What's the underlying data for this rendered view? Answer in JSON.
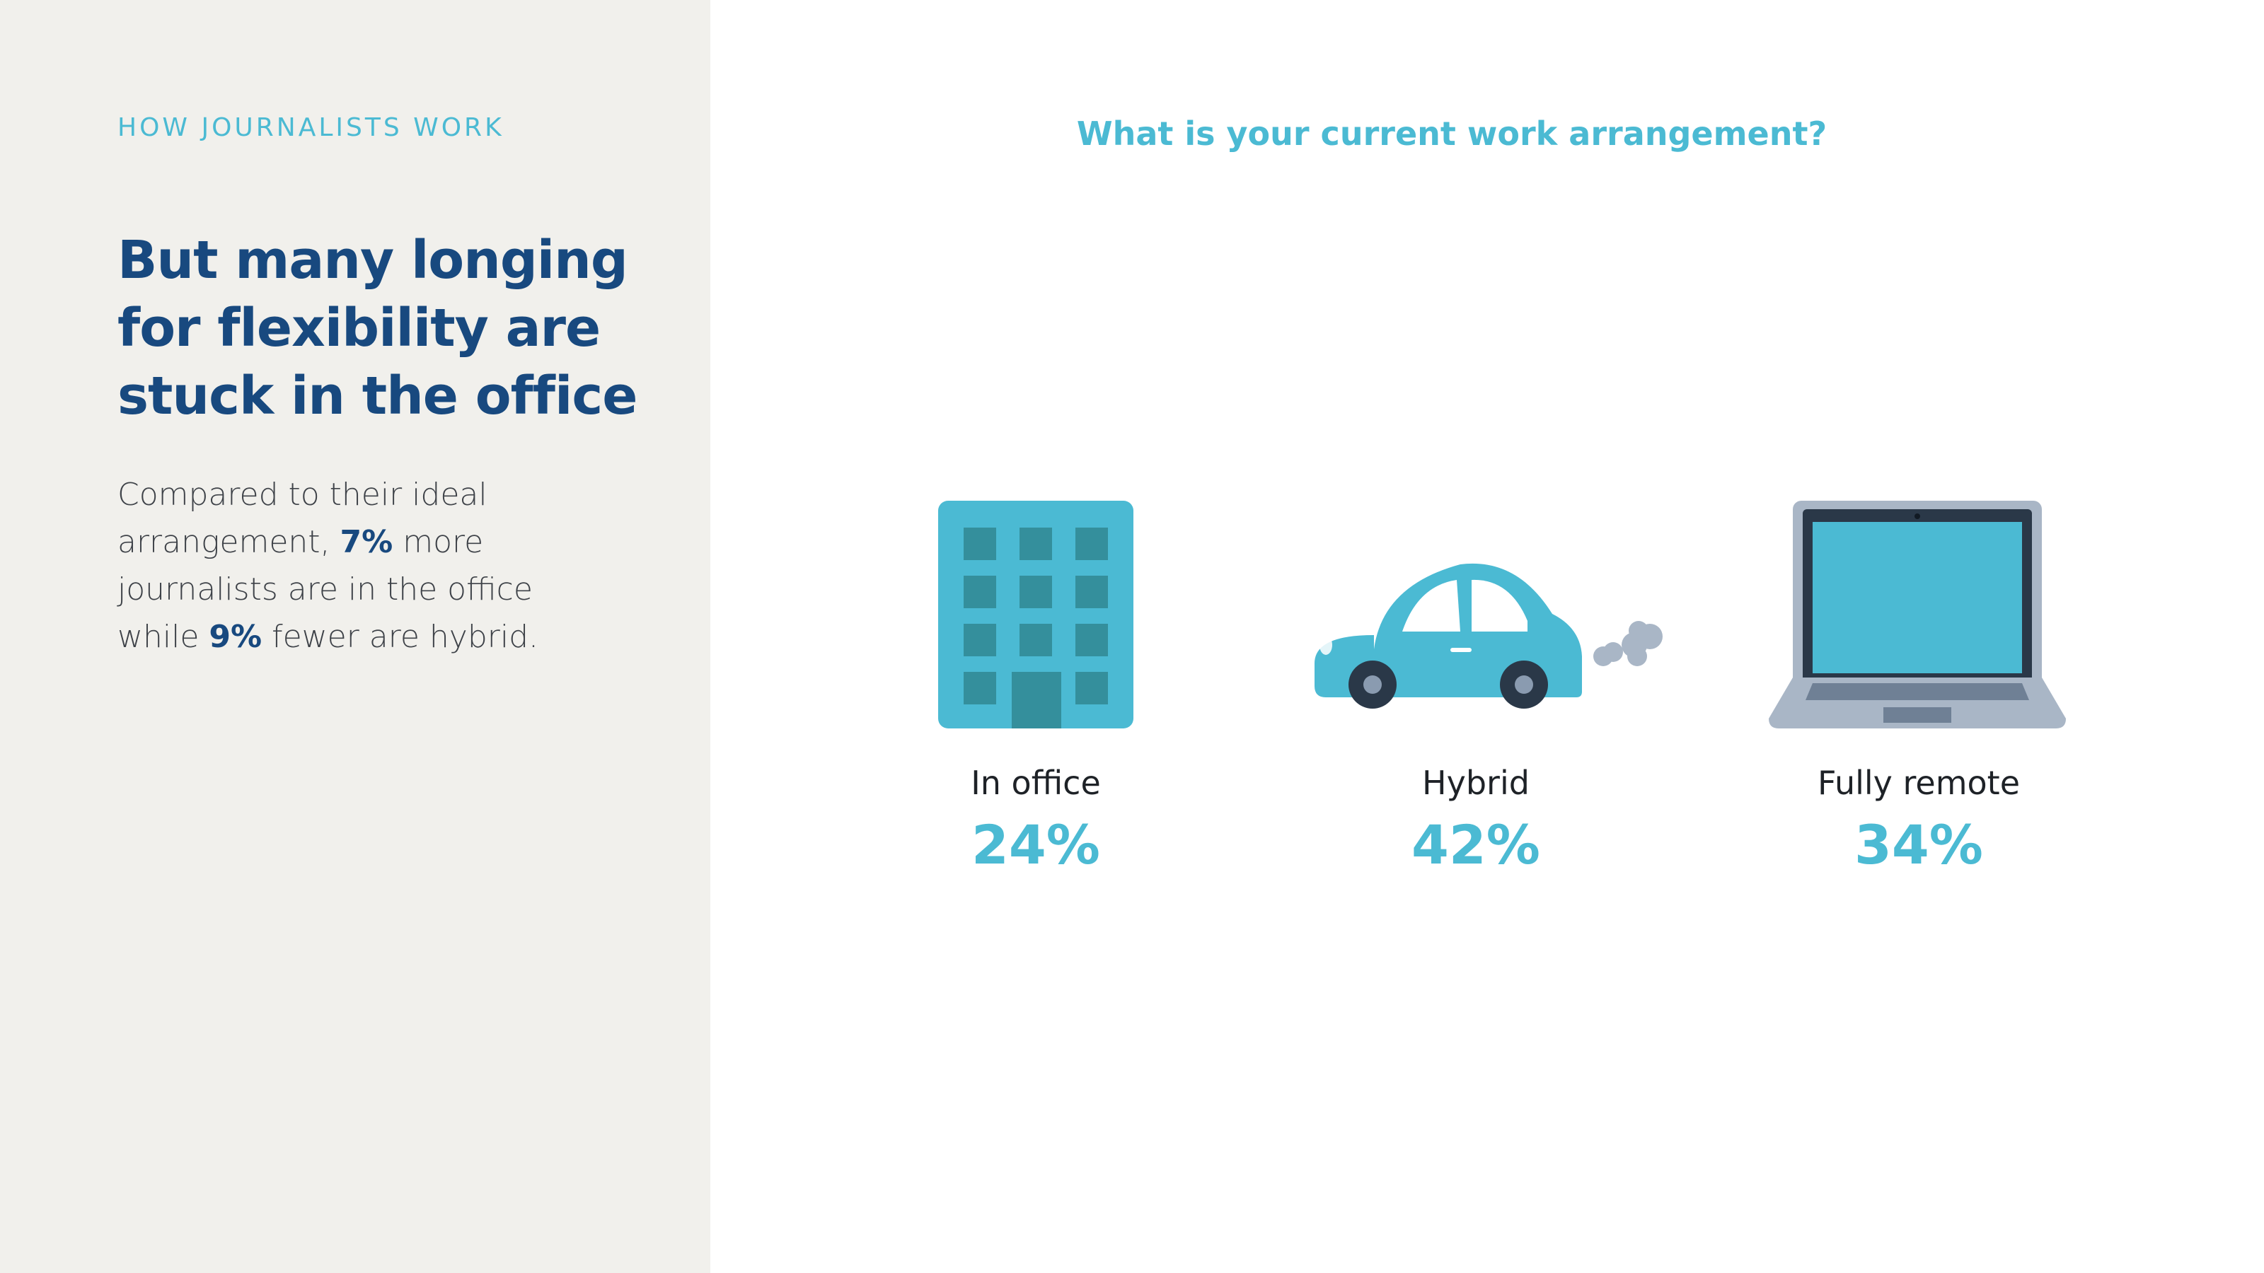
{
  "sidebar": {
    "eyebrow": "HOW JOURNALISTS WORK",
    "headline": "But many longing for flexibility are stuck in the office",
    "description": {
      "part1": "Compared to their ideal arrangement, ",
      "highlight1": "7%",
      "part2": " more journalists are in the office while ",
      "highlight2": "9%",
      "part3": " fewer are hybrid."
    }
  },
  "chart_data": {
    "type": "bar",
    "title": "What is your current work arrangement?",
    "categories": [
      "In office",
      "Hybrid",
      "Fully remote"
    ],
    "values": [
      24,
      42,
      34
    ],
    "value_labels": [
      "24%",
      "42%",
      "34%"
    ],
    "icons": [
      "office-building-icon",
      "car-icon",
      "laptop-icon"
    ],
    "unit": "%"
  },
  "colors": {
    "accent": "#4bbad3",
    "accent_dark": "#348f9c",
    "navy": "#18497f",
    "sidebar_bg": "#f1f0ec"
  }
}
